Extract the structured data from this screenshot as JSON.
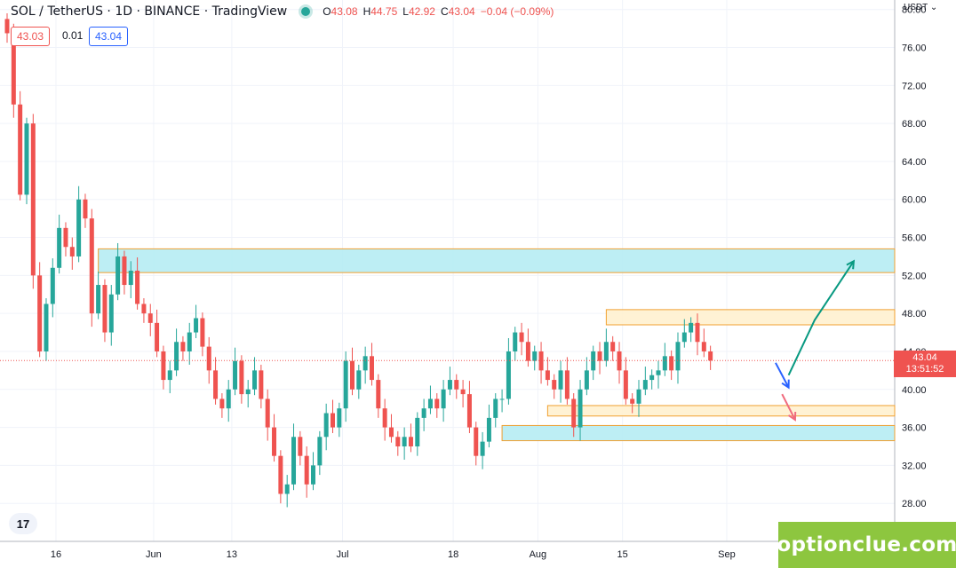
{
  "header": {
    "symbol_line": "SOL / TetherUS · 1D · BINANCE · TradingView",
    "ohlc": {
      "open_label": "O",
      "open": "43.08",
      "high_label": "H",
      "high": "44.75",
      "low_label": "L",
      "low": "42.92",
      "close_label": "C",
      "close": "43.04",
      "change": "−0.04 (−0.09%)"
    },
    "bid": "43.03",
    "spread": "0.01",
    "ask": "43.04"
  },
  "price_scale": {
    "currency": "USDT ⌄",
    "current_price": "43.04",
    "countdown": "13:51:52"
  },
  "watermark": "optionclue.com",
  "logo_text": "17",
  "colors": {
    "up": "#26a69a",
    "down": "#ef5350",
    "zone_fill": "#b2ebf2",
    "zone_border": "#f0a030",
    "zone_light": "#fff0cc",
    "brand": "#8dc63f",
    "blue_arrow": "#2962ff"
  },
  "chart_data": {
    "type": "candlestick",
    "y_ticks": [
      "80.00",
      "76.00",
      "72.00",
      "68.00",
      "64.00",
      "60.00",
      "56.00",
      "52.00",
      "48.00",
      "44.00",
      "40.00",
      "36.00",
      "32.00",
      "28.00"
    ],
    "x_ticks": [
      "16",
      "Jun",
      "13",
      "Jul",
      "18",
      "Aug",
      "15",
      "Sep"
    ],
    "ylim": [
      24,
      81
    ],
    "closes": [
      77.5,
      70,
      60.5,
      68,
      52,
      44,
      49,
      52.8,
      57,
      55,
      54,
      60,
      58,
      48,
      51,
      46,
      50,
      54,
      51,
      52.5,
      49,
      48,
      47,
      44,
      41,
      42,
      45,
      44,
      46,
      47.5,
      44.5,
      42,
      39,
      38,
      40,
      43,
      39.5,
      40,
      42,
      39,
      36,
      33,
      29,
      30,
      35,
      33,
      30,
      32,
      35,
      37.5,
      36,
      38,
      43,
      40,
      42,
      43.5,
      41,
      38,
      36,
      35,
      34,
      35,
      34,
      37,
      38,
      39,
      38,
      40,
      41,
      40,
      39.5,
      36,
      33,
      34.5,
      37,
      39,
      39,
      44,
      46,
      45,
      43,
      44,
      42,
      41,
      40,
      42,
      39,
      36,
      40,
      42,
      44,
      43,
      45,
      44,
      42,
      39,
      38.5,
      40,
      41,
      41.5,
      42,
      43.5,
      42,
      45,
      46,
      47,
      45,
      44,
      43.04
    ],
    "zones": [
      {
        "name": "resistance-zone",
        "top": 54.8,
        "bottom": 52.3,
        "style": "cyan"
      },
      {
        "name": "local-resistance-zone",
        "top": 48.4,
        "bottom": 46.8,
        "style": "orange"
      },
      {
        "name": "local-support-zone",
        "top": 38.3,
        "bottom": 37.2,
        "style": "orange"
      },
      {
        "name": "support-zone",
        "top": 36.2,
        "bottom": 34.6,
        "style": "cyan"
      }
    ],
    "arrows": [
      {
        "name": "bullish-scenario-arrow",
        "color": "green",
        "points": [
          [
            120,
            41.5
          ],
          [
            124,
            47.3
          ],
          [
            130,
            53.5
          ]
        ]
      },
      {
        "name": "pullback-arrow",
        "color": "blue",
        "points": [
          [
            118,
            42.8
          ],
          [
            120,
            40.2
          ]
        ]
      },
      {
        "name": "bearish-scenario-arrow",
        "color": "red",
        "points": [
          [
            119,
            39.5
          ],
          [
            121,
            36.8
          ]
        ]
      }
    ]
  }
}
